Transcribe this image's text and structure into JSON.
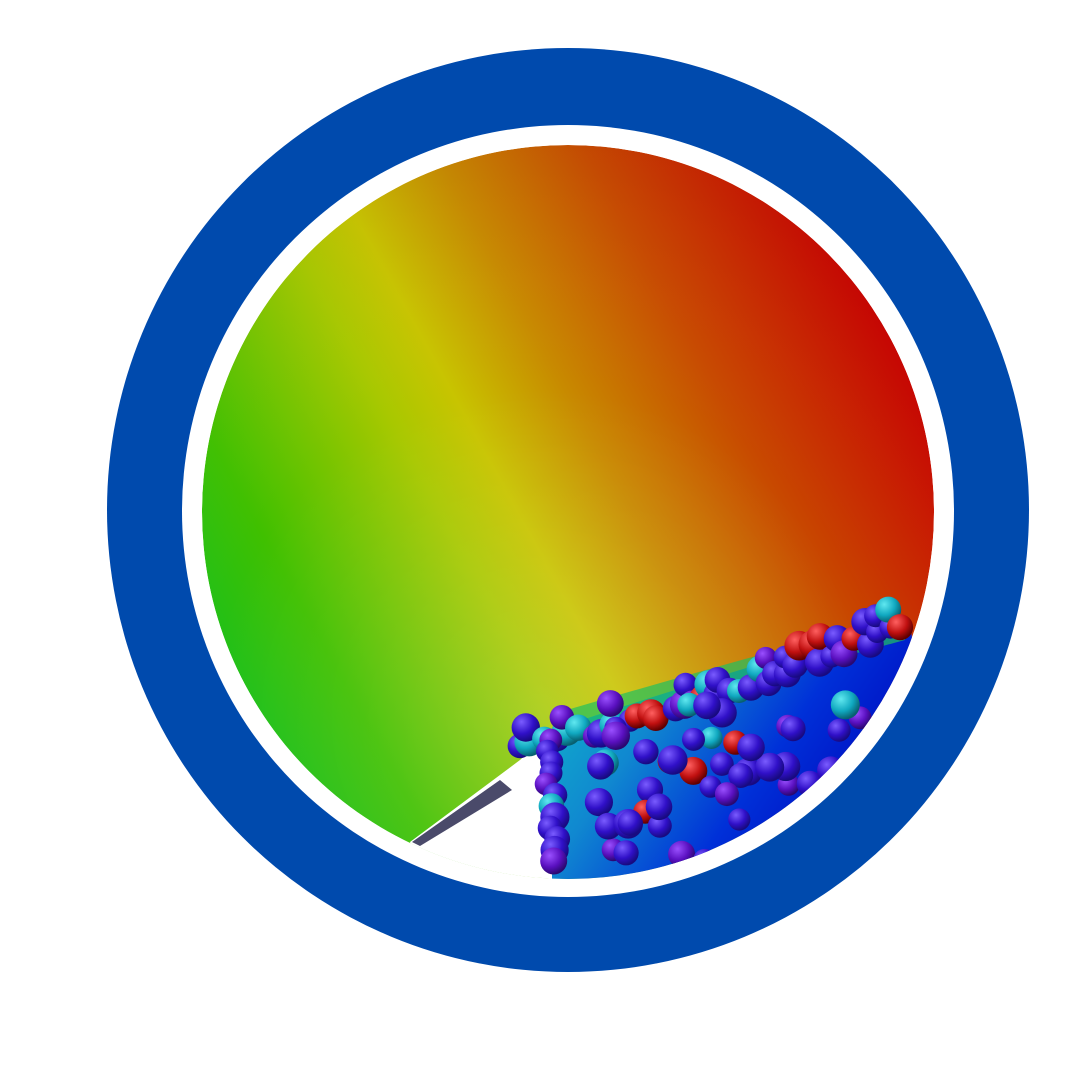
{
  "scene": {
    "kind": "3d-render-viewport",
    "background_color": "#ffffff",
    "outer_ring_color": "#004aad",
    "gap_color": "#ffffff",
    "field_colormap": [
      "#00c000",
      "#a8c800",
      "#c8c800",
      "#c87800",
      "#c83000",
      "#c80000"
    ],
    "wedge_colormap": [
      "#00c8c0",
      "#10a0d0",
      "#0040d0",
      "#0000c0"
    ],
    "particle_colors": [
      "#3a10c8",
      "#2010c0",
      "#5010c0",
      "#1810b8",
      "#20b0c0",
      "#c01010"
    ]
  }
}
